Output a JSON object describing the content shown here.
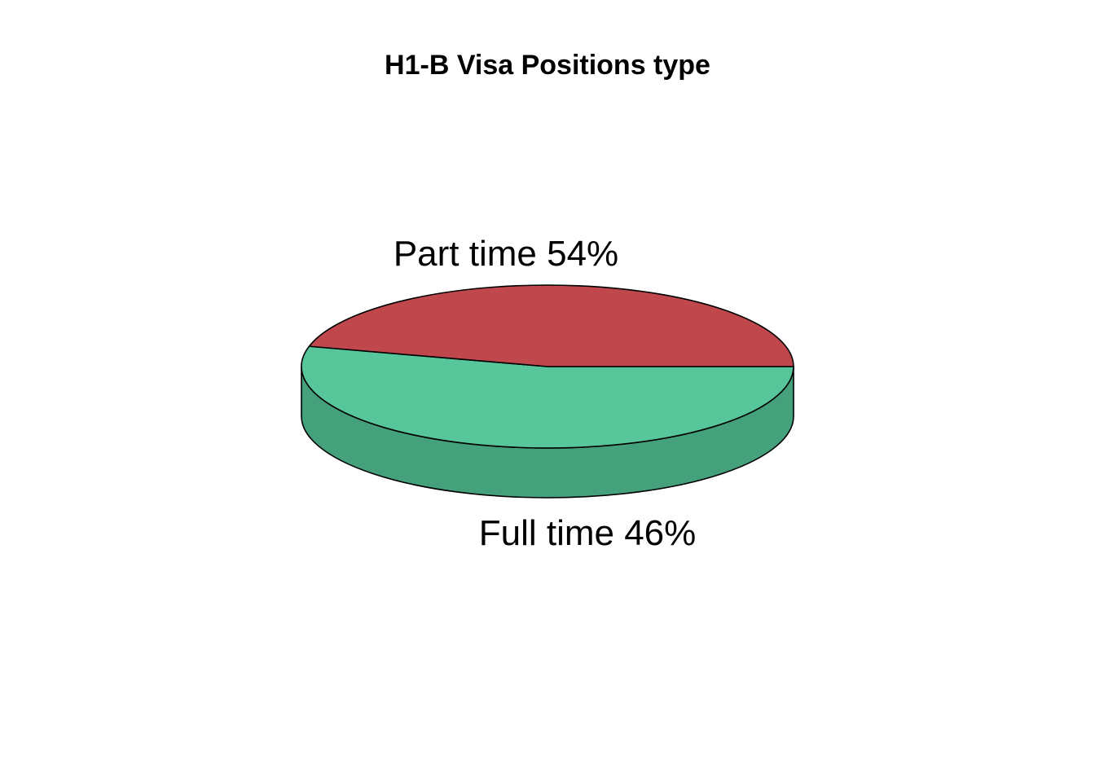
{
  "chart_data": {
    "type": "pie",
    "style": "3d",
    "title": "H1-B Visa Positions type",
    "categories": [
      "Part time",
      "Full time"
    ],
    "values": [
      54,
      46
    ],
    "labels": [
      "Part time 54%",
      "Full time 46%"
    ],
    "colors": {
      "Part time": "#57C69B",
      "Full time": "#C0474B",
      "Part time side": "#45A07C",
      "Full time side": "#8E3439"
    },
    "legend": "none",
    "grid": false
  }
}
